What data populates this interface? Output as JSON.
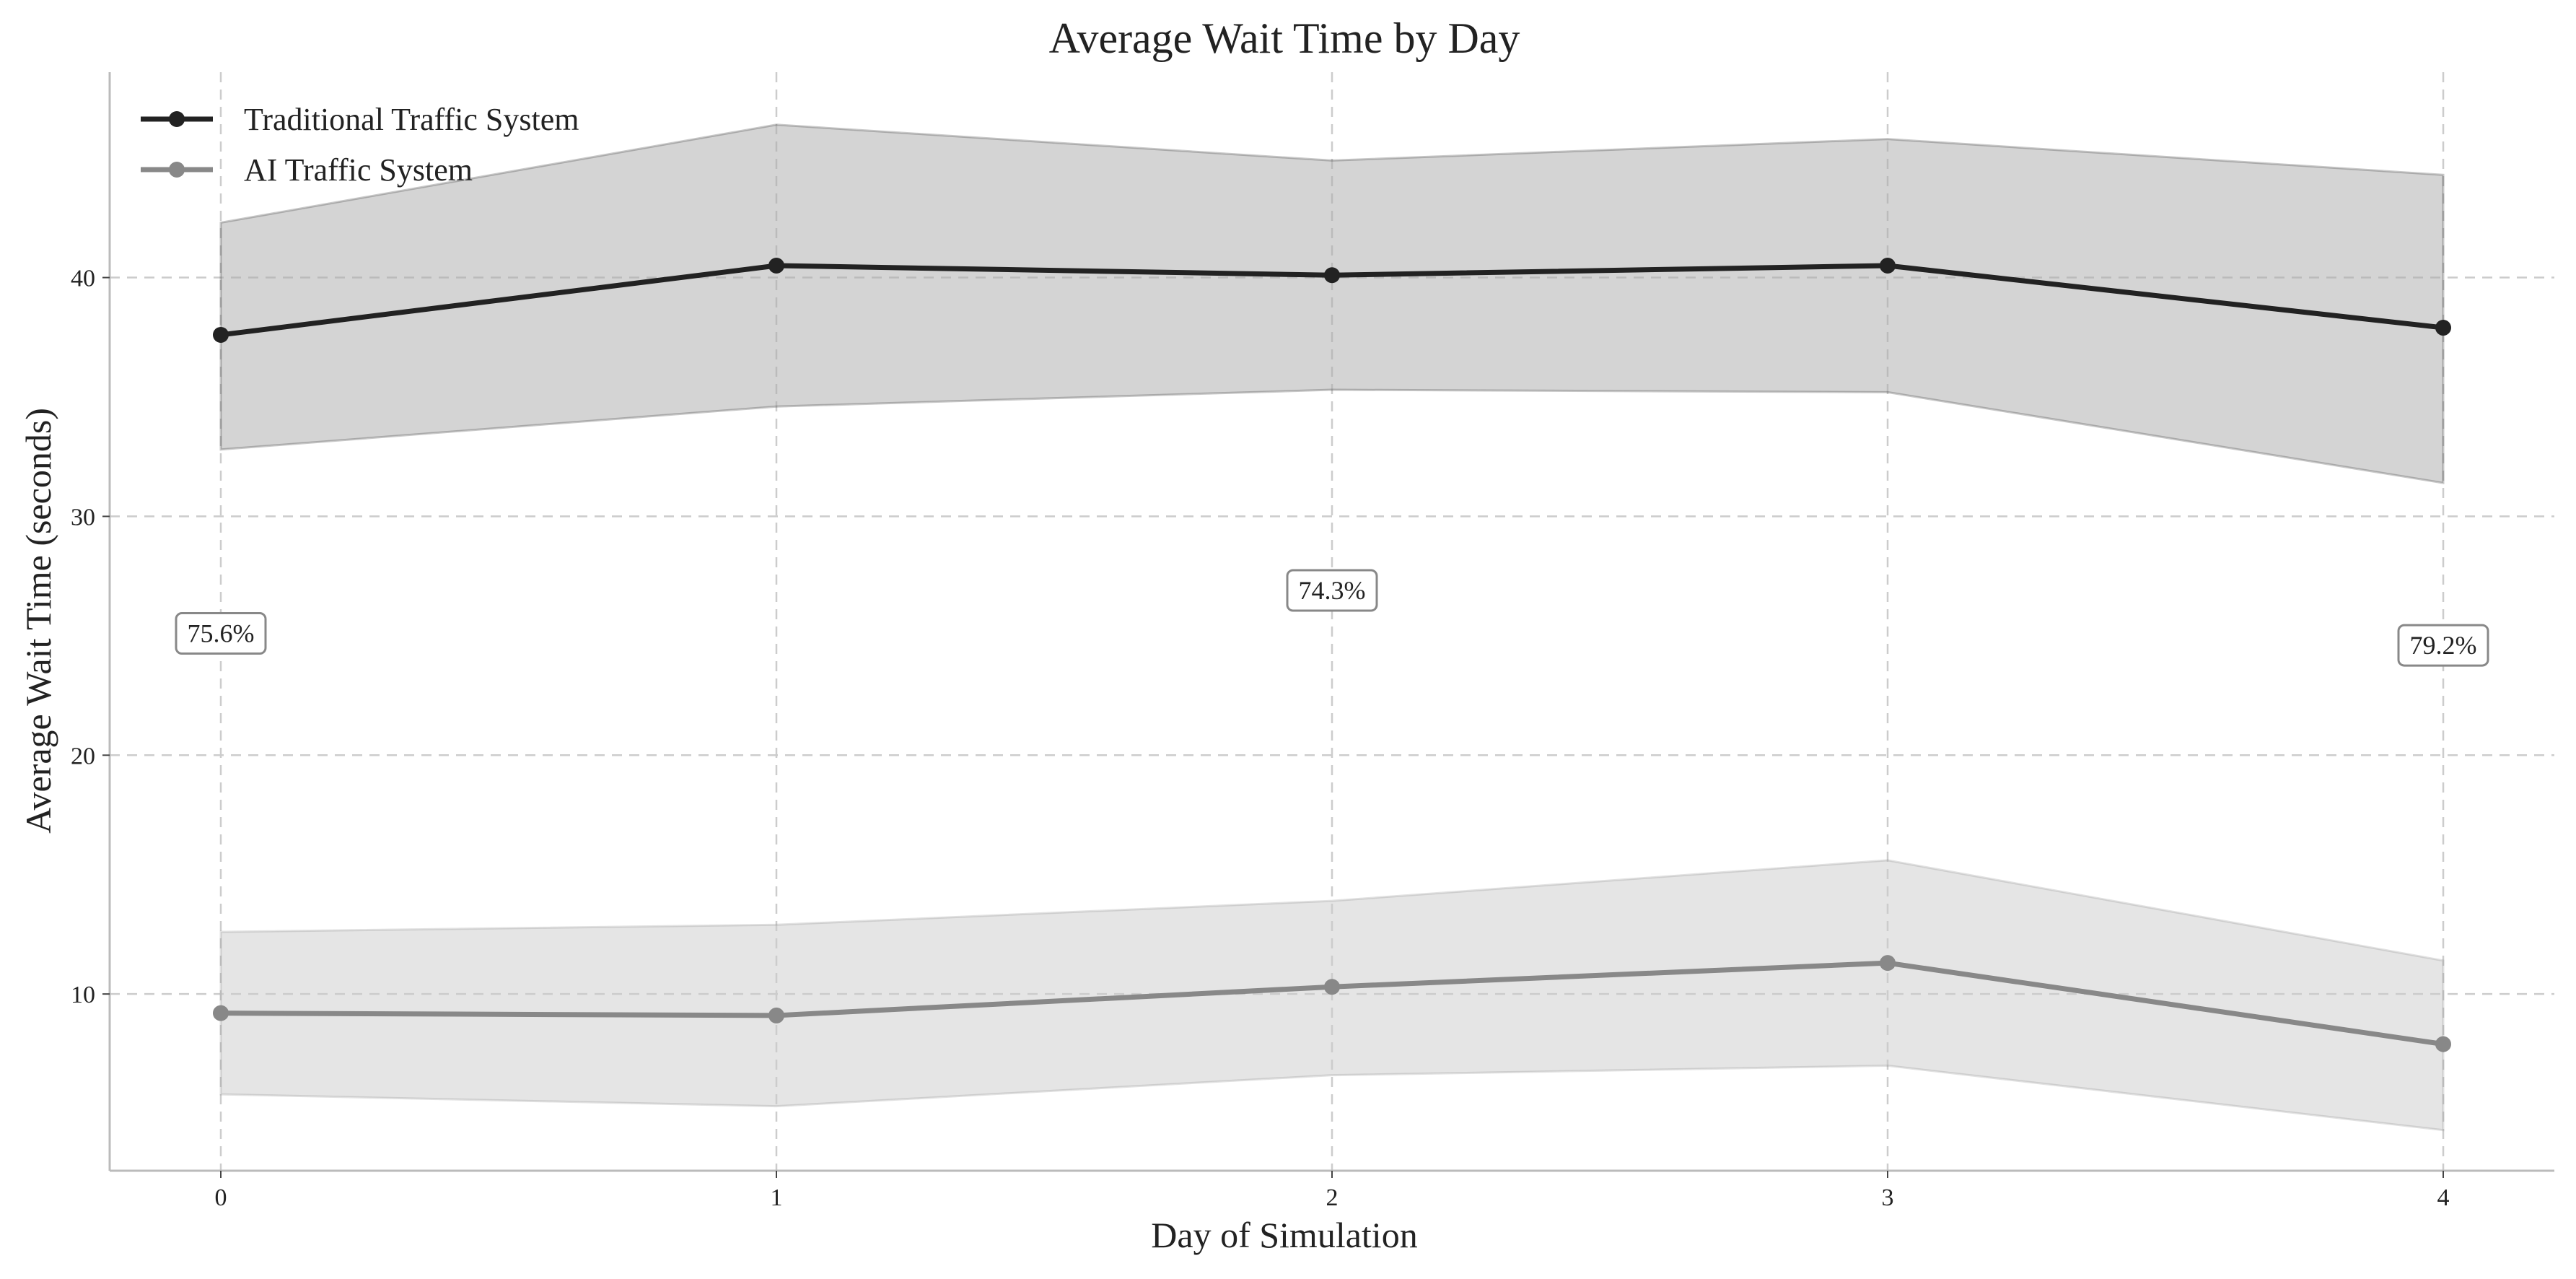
{
  "chart_data": {
    "type": "line",
    "title": "Average Wait Time by Day",
    "xlabel": "Day of Simulation",
    "ylabel": "Average Wait Time (seconds)",
    "x": [
      0,
      1,
      2,
      3,
      4
    ],
    "xlim": [
      -0.2,
      4.2
    ],
    "ylim": [
      2.6,
      48.6
    ],
    "xticks": [
      0,
      1,
      2,
      3,
      4
    ],
    "yticks": [
      10,
      20,
      30,
      40
    ],
    "grid": true,
    "legend_position": "top-left",
    "series": [
      {
        "name": "Traditional Traffic System",
        "values": [
          37.6,
          40.5,
          40.1,
          40.5,
          37.9
        ],
        "upper": [
          42.3,
          46.4,
          44.9,
          45.8,
          44.3
        ],
        "lower": [
          32.8,
          34.6,
          35.3,
          35.2,
          31.4
        ],
        "color": "#222222",
        "band_color": "#a9a9a9"
      },
      {
        "name": "AI Traffic System",
        "values": [
          9.2,
          9.1,
          10.3,
          11.3,
          7.9
        ],
        "upper": [
          12.6,
          12.9,
          13.9,
          15.6,
          11.4
        ],
        "lower": [
          5.8,
          5.3,
          6.6,
          7.0,
          4.3
        ],
        "color": "#888888",
        "band_color": "#cccccc"
      }
    ],
    "annotations": [
      {
        "x": 0,
        "y": 25.1,
        "text": "75.6%"
      },
      {
        "x": 2,
        "y": 26.9,
        "text": "74.3%"
      },
      {
        "x": 4,
        "y": 24.6,
        "text": "79.2%"
      }
    ]
  }
}
